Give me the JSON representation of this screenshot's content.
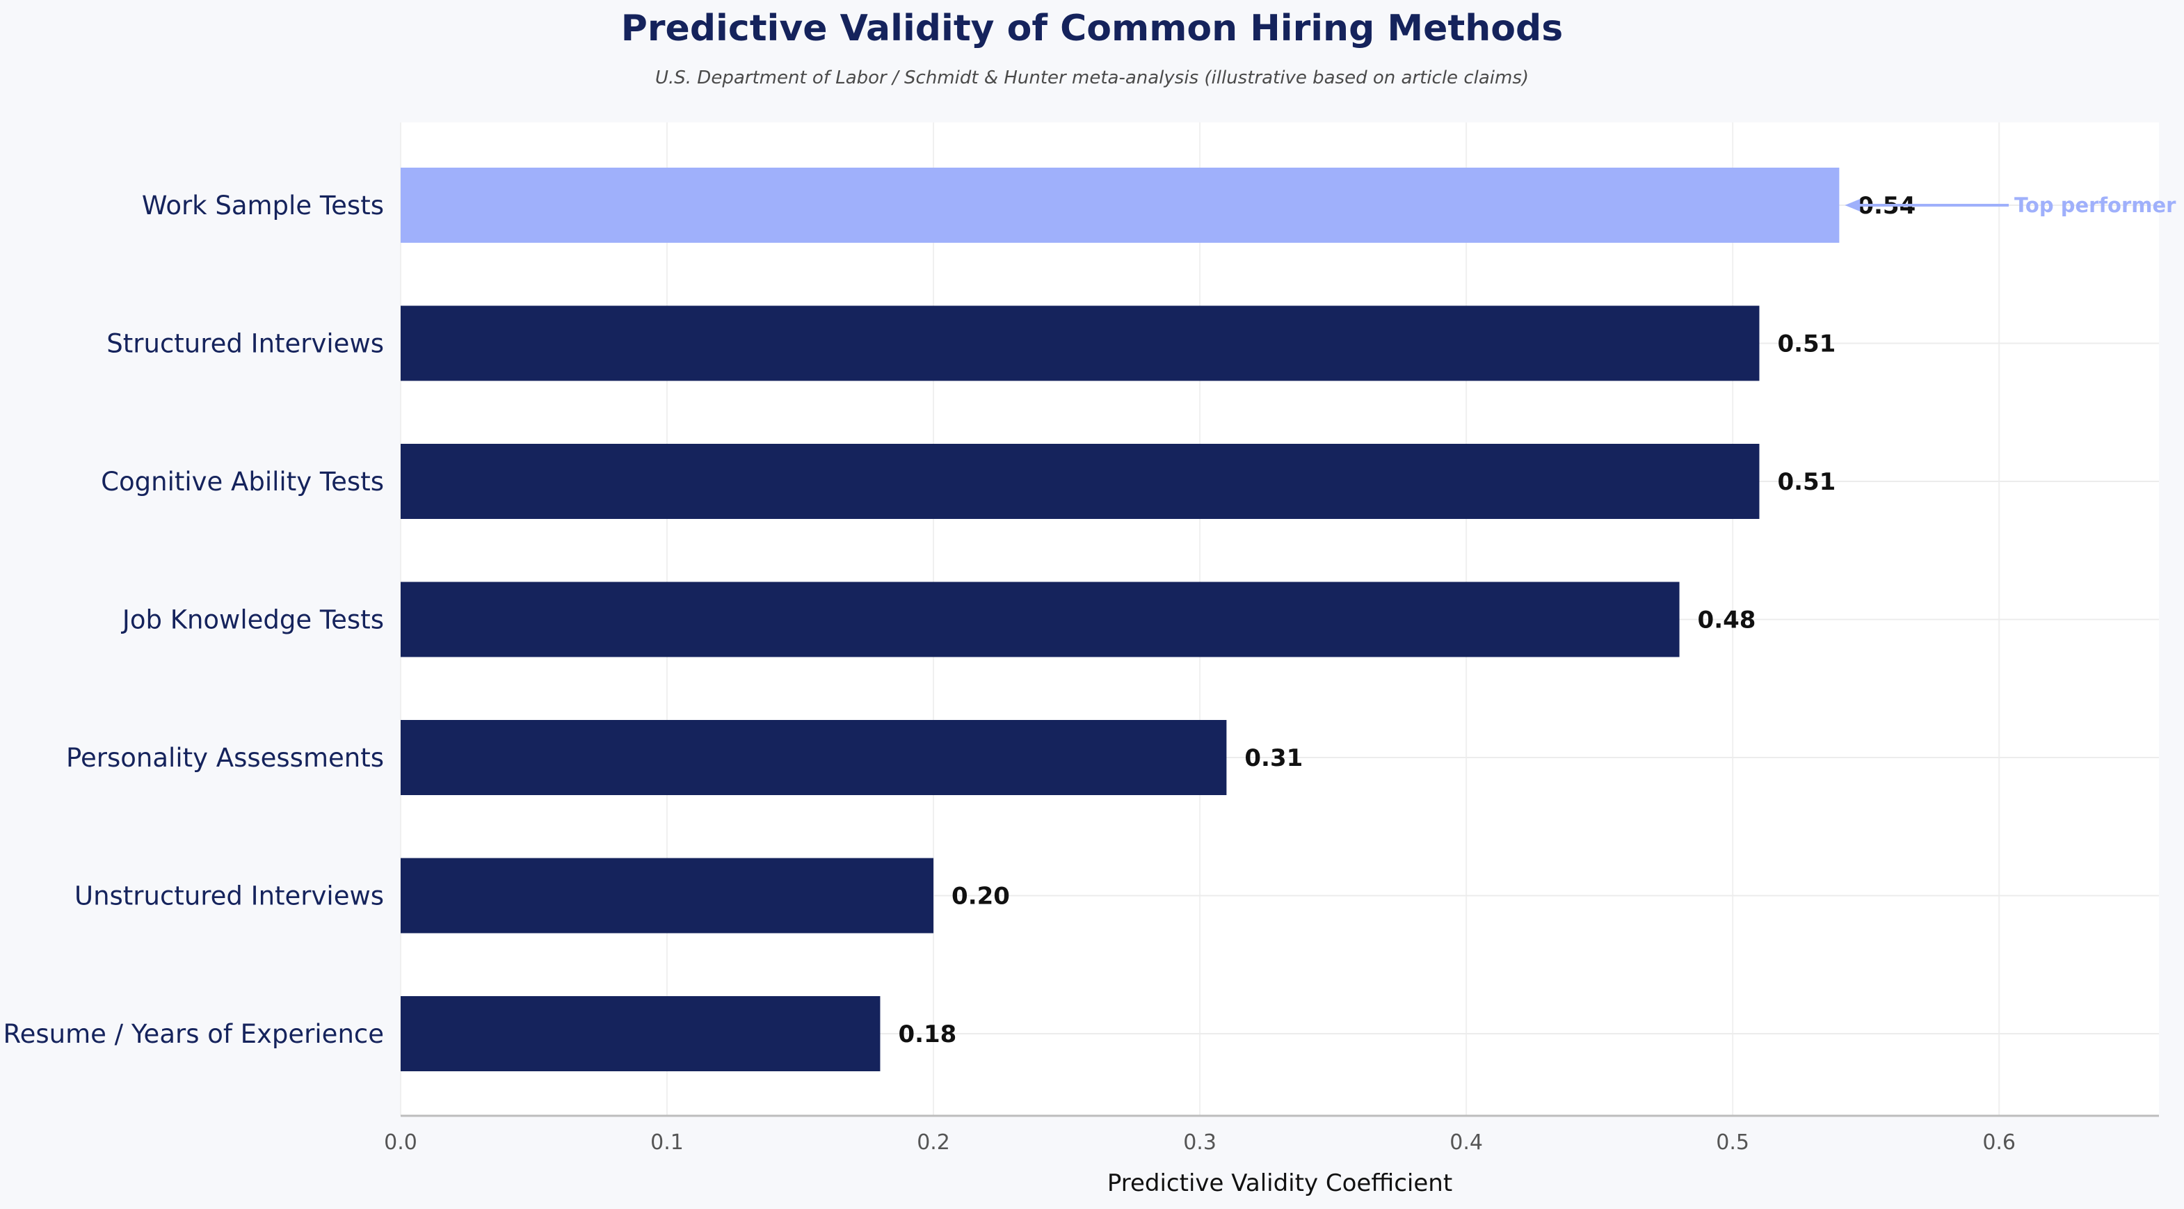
{
  "chart_data": {
    "type": "bar",
    "orientation": "horizontal",
    "title": "Predictive Validity of Common Hiring Methods",
    "subtitle": "U.S. Department of Labor / Schmidt & Hunter meta-analysis (illustrative based on article claims)",
    "xlabel": "Predictive Validity Coefficient",
    "ylabel": "",
    "xlim": [
      0,
      0.66
    ],
    "xticks": [
      "0.0",
      "0.1",
      "0.2",
      "0.3",
      "0.4",
      "0.5",
      "0.6"
    ],
    "categories": [
      "Work Sample Tests",
      "Structured Interviews",
      "Cognitive Ability Tests",
      "Job Knowledge Tests",
      "Personality Assessments",
      "Unstructured Interviews",
      "Resume / Years of Experience"
    ],
    "values": [
      0.54,
      0.51,
      0.51,
      0.48,
      0.31,
      0.2,
      0.18
    ],
    "value_labels": [
      "0.54",
      "0.51",
      "0.51",
      "0.48",
      "0.31",
      "0.20",
      "0.18"
    ],
    "highlight_index": 0,
    "annotation": {
      "text": "Top performer",
      "target_index": 0
    },
    "grid": true,
    "colors": {
      "bar": "#15235c",
      "highlight": "#9fb0fb",
      "title": "#15235c",
      "background": "#f7f8fb",
      "plot_background": "#ffffff"
    }
  }
}
